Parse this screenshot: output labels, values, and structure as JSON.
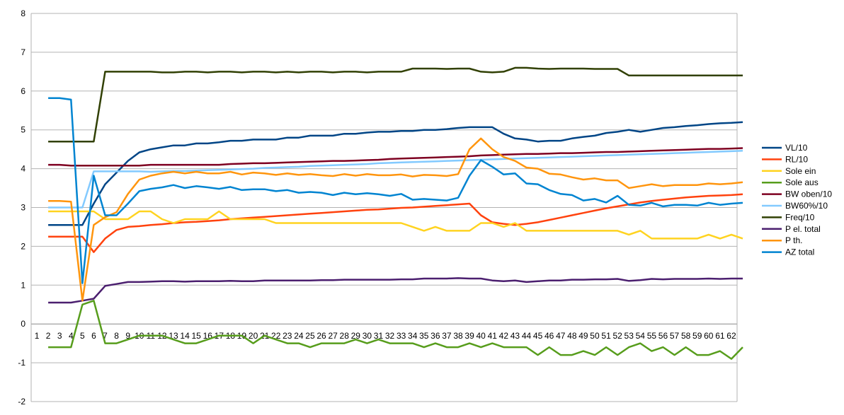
{
  "chart_data": {
    "type": "line",
    "title": "",
    "xlabel": "",
    "ylabel": "",
    "ylim": [
      -2,
      8
    ],
    "yticks": [
      "-2",
      "-1",
      "0",
      "1",
      "2",
      "3",
      "4",
      "5",
      "6",
      "7",
      "8"
    ],
    "grid": "horizontal",
    "legend_position": "right",
    "categories": [
      "1",
      "2",
      "3",
      "4",
      "5",
      "6",
      "7",
      "8",
      "9",
      "10",
      "11",
      "12",
      "13",
      "14",
      "15",
      "16",
      "17",
      "18",
      "19",
      "20",
      "21",
      "22",
      "23",
      "24",
      "25",
      "26",
      "27",
      "28",
      "29",
      "30",
      "31",
      "32",
      "33",
      "34",
      "35",
      "36",
      "37",
      "38",
      "39",
      "40",
      "41",
      "42",
      "43",
      "44",
      "45",
      "46",
      "47",
      "48",
      "49",
      "50",
      "51",
      "52",
      "53",
      "54",
      "55",
      "56",
      "57",
      "58",
      "59",
      "60",
      "61",
      "62"
    ],
    "series": [
      {
        "name": "VL/10",
        "color": "#004586",
        "x_start": 2,
        "values": [
          2.55,
          2.55,
          2.55,
          2.55,
          3.1,
          3.6,
          3.9,
          4.2,
          4.42,
          4.5,
          4.55,
          4.6,
          4.6,
          4.65,
          4.65,
          4.68,
          4.72,
          4.72,
          4.75,
          4.75,
          4.75,
          4.8,
          4.8,
          4.85,
          4.85,
          4.85,
          4.9,
          4.9,
          4.93,
          4.95,
          4.95,
          4.97,
          4.97,
          5.0,
          5.0,
          5.02,
          5.05,
          5.07,
          5.07,
          5.07,
          4.9,
          4.78,
          4.75,
          4.7,
          4.72,
          4.72,
          4.78,
          4.82,
          4.85,
          4.92,
          4.95,
          5.0,
          4.95,
          5.0,
          5.05,
          5.07,
          5.1,
          5.12,
          5.15,
          5.17,
          5.18,
          5.2
        ]
      },
      {
        "name": "RL/10",
        "color": "#ff420e",
        "x_start": 2,
        "values": [
          2.25,
          2.25,
          2.25,
          2.25,
          1.85,
          2.2,
          2.42,
          2.5,
          2.52,
          2.55,
          2.57,
          2.6,
          2.62,
          2.63,
          2.65,
          2.67,
          2.7,
          2.72,
          2.74,
          2.76,
          2.78,
          2.8,
          2.82,
          2.84,
          2.86,
          2.88,
          2.9,
          2.92,
          2.94,
          2.95,
          2.97,
          2.99,
          3.0,
          3.02,
          3.04,
          3.06,
          3.08,
          3.1,
          2.8,
          2.62,
          2.58,
          2.55,
          2.58,
          2.62,
          2.68,
          2.74,
          2.8,
          2.86,
          2.92,
          2.98,
          3.03,
          3.08,
          3.13,
          3.17,
          3.2,
          3.23,
          3.26,
          3.28,
          3.3,
          3.31,
          3.32,
          3.34
        ]
      },
      {
        "name": "Sole ein",
        "color": "#ffd320",
        "x_start": 2,
        "values": [
          2.9,
          2.9,
          2.9,
          2.9,
          2.9,
          2.7,
          2.7,
          2.7,
          2.9,
          2.9,
          2.7,
          2.6,
          2.7,
          2.7,
          2.7,
          2.9,
          2.7,
          2.7,
          2.7,
          2.7,
          2.6,
          2.6,
          2.6,
          2.6,
          2.6,
          2.6,
          2.6,
          2.6,
          2.6,
          2.6,
          2.6,
          2.6,
          2.5,
          2.4,
          2.5,
          2.4,
          2.4,
          2.4,
          2.6,
          2.6,
          2.5,
          2.6,
          2.4,
          2.4,
          2.4,
          2.4,
          2.4,
          2.4,
          2.4,
          2.4,
          2.4,
          2.3,
          2.4,
          2.2,
          2.2,
          2.2,
          2.2,
          2.2,
          2.3,
          2.2,
          2.3,
          2.2
        ]
      },
      {
        "name": "Sole aus",
        "color": "#579d1c",
        "x_start": 2,
        "values": [
          -0.6,
          -0.6,
          -0.6,
          0.5,
          0.6,
          -0.5,
          -0.5,
          -0.4,
          -0.3,
          -0.3,
          -0.3,
          -0.4,
          -0.5,
          -0.5,
          -0.4,
          -0.3,
          -0.3,
          -0.3,
          -0.5,
          -0.3,
          -0.4,
          -0.5,
          -0.5,
          -0.6,
          -0.5,
          -0.5,
          -0.5,
          -0.4,
          -0.5,
          -0.4,
          -0.5,
          -0.5,
          -0.5,
          -0.6,
          -0.5,
          -0.6,
          -0.6,
          -0.5,
          -0.6,
          -0.5,
          -0.6,
          -0.6,
          -0.6,
          -0.8,
          -0.6,
          -0.8,
          -0.8,
          -0.7,
          -0.8,
          -0.6,
          -0.8,
          -0.6,
          -0.5,
          -0.7,
          -0.6,
          -0.8,
          -0.6,
          -0.8,
          -0.8,
          -0.7,
          -0.9,
          -0.6
        ]
      },
      {
        "name": "BW oben/10",
        "color": "#7e0021",
        "x_start": 2,
        "values": [
          4.1,
          4.1,
          4.08,
          4.08,
          4.08,
          4.08,
          4.08,
          4.08,
          4.08,
          4.1,
          4.1,
          4.1,
          4.1,
          4.1,
          4.1,
          4.1,
          4.12,
          4.13,
          4.14,
          4.14,
          4.15,
          4.16,
          4.17,
          4.18,
          4.19,
          4.2,
          4.2,
          4.21,
          4.22,
          4.23,
          4.25,
          4.26,
          4.27,
          4.28,
          4.29,
          4.3,
          4.31,
          4.32,
          4.34,
          4.35,
          4.36,
          4.37,
          4.38,
          4.38,
          4.39,
          4.4,
          4.4,
          4.41,
          4.42,
          4.43,
          4.43,
          4.44,
          4.45,
          4.46,
          4.47,
          4.48,
          4.49,
          4.5,
          4.51,
          4.51,
          4.52,
          4.53
        ]
      },
      {
        "name": "BW60%/10",
        "color": "#83caff",
        "x_start": 2,
        "values": [
          3.0,
          3.0,
          3.0,
          3.0,
          3.93,
          3.93,
          3.93,
          3.93,
          3.93,
          3.92,
          3.93,
          3.94,
          3.94,
          3.95,
          3.96,
          3.97,
          3.98,
          3.99,
          4.0,
          4.02,
          4.03,
          4.04,
          4.05,
          4.07,
          4.08,
          4.09,
          4.1,
          4.11,
          4.12,
          4.14,
          4.15,
          4.16,
          4.17,
          4.18,
          4.19,
          4.2,
          4.21,
          4.22,
          4.23,
          4.24,
          4.25,
          4.26,
          4.27,
          4.28,
          4.29,
          4.3,
          4.31,
          4.32,
          4.33,
          4.34,
          4.35,
          4.36,
          4.37,
          4.38,
          4.39,
          4.4,
          4.41,
          4.42,
          4.43,
          4.44,
          4.45,
          4.46
        ]
      },
      {
        "name": "Freq/10",
        "color": "#314004",
        "x_start": 2,
        "values": [
          4.7,
          4.7,
          4.7,
          4.7,
          4.7,
          6.5,
          6.5,
          6.5,
          6.5,
          6.5,
          6.48,
          6.48,
          6.5,
          6.5,
          6.48,
          6.5,
          6.5,
          6.48,
          6.5,
          6.5,
          6.48,
          6.5,
          6.48,
          6.5,
          6.5,
          6.48,
          6.5,
          6.5,
          6.48,
          6.5,
          6.5,
          6.5,
          6.58,
          6.58,
          6.58,
          6.57,
          6.58,
          6.58,
          6.5,
          6.48,
          6.5,
          6.6,
          6.6,
          6.58,
          6.57,
          6.58,
          6.58,
          6.58,
          6.57,
          6.57,
          6.57,
          6.4,
          6.4,
          6.4,
          6.4,
          6.4,
          6.4,
          6.4,
          6.4,
          6.4,
          6.4,
          6.4
        ]
      },
      {
        "name": "P el. total",
        "color": "#4b1f6f",
        "x_start": 2,
        "values": [
          0.55,
          0.55,
          0.55,
          0.6,
          0.65,
          0.98,
          1.03,
          1.08,
          1.08,
          1.09,
          1.1,
          1.1,
          1.09,
          1.1,
          1.1,
          1.1,
          1.11,
          1.1,
          1.1,
          1.12,
          1.12,
          1.12,
          1.12,
          1.12,
          1.13,
          1.13,
          1.14,
          1.14,
          1.14,
          1.14,
          1.14,
          1.15,
          1.15,
          1.17,
          1.17,
          1.17,
          1.18,
          1.17,
          1.17,
          1.12,
          1.1,
          1.12,
          1.08,
          1.1,
          1.12,
          1.12,
          1.14,
          1.14,
          1.15,
          1.15,
          1.16,
          1.11,
          1.13,
          1.16,
          1.15,
          1.16,
          1.16,
          1.16,
          1.17,
          1.16,
          1.17,
          1.17
        ]
      },
      {
        "name": "P th.",
        "color": "#ff950e",
        "x_start": 2,
        "values": [
          3.17,
          3.17,
          3.15,
          0.6,
          2.55,
          2.75,
          2.88,
          3.35,
          3.72,
          3.82,
          3.88,
          3.92,
          3.88,
          3.92,
          3.88,
          3.88,
          3.92,
          3.85,
          3.9,
          3.88,
          3.84,
          3.88,
          3.84,
          3.86,
          3.83,
          3.81,
          3.86,
          3.82,
          3.86,
          3.83,
          3.83,
          3.85,
          3.8,
          3.84,
          3.83,
          3.81,
          3.86,
          4.5,
          4.78,
          4.5,
          4.3,
          4.2,
          4.03,
          4.0,
          3.87,
          3.85,
          3.78,
          3.72,
          3.75,
          3.7,
          3.7,
          3.5,
          3.55,
          3.6,
          3.55,
          3.58,
          3.58,
          3.58,
          3.62,
          3.6,
          3.62,
          3.65
        ]
      },
      {
        "name": "AZ total",
        "color": "#0084d1",
        "x_start": 2,
        "values": [
          5.82,
          5.82,
          5.78,
          1.05,
          3.82,
          2.8,
          2.8,
          3.1,
          3.42,
          3.48,
          3.52,
          3.58,
          3.5,
          3.55,
          3.52,
          3.48,
          3.53,
          3.45,
          3.47,
          3.47,
          3.42,
          3.45,
          3.38,
          3.4,
          3.38,
          3.32,
          3.38,
          3.34,
          3.37,
          3.34,
          3.3,
          3.35,
          3.2,
          3.22,
          3.2,
          3.18,
          3.25,
          3.82,
          4.22,
          4.05,
          3.85,
          3.88,
          3.62,
          3.6,
          3.45,
          3.35,
          3.32,
          3.18,
          3.22,
          3.13,
          3.3,
          3.07,
          3.05,
          3.12,
          3.03,
          3.07,
          3.07,
          3.05,
          3.12,
          3.07,
          3.1,
          3.12
        ]
      }
    ]
  }
}
